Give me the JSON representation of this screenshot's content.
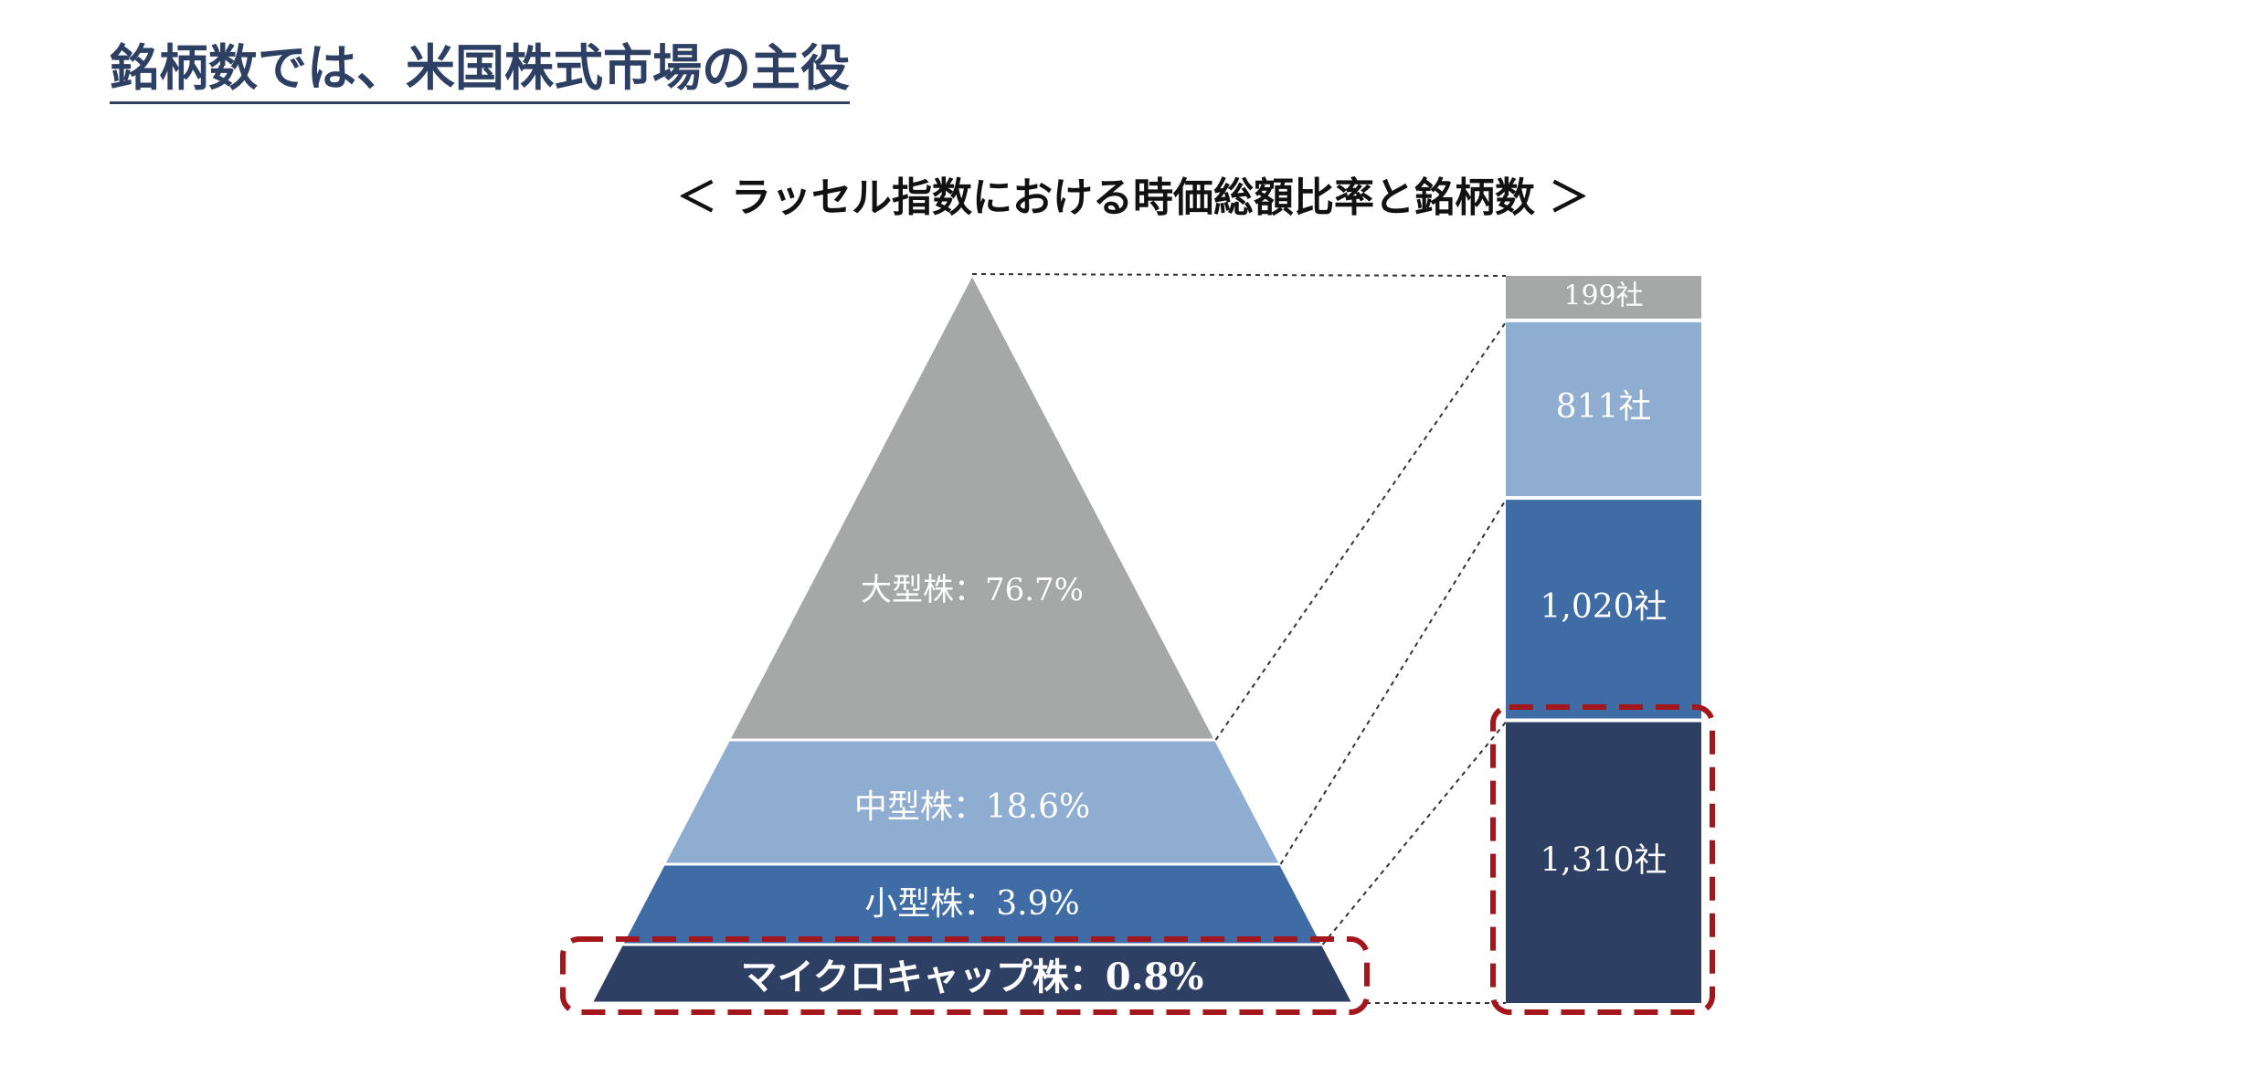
{
  "page": {
    "title": "銘柄数では、米国株式市場の主役"
  },
  "chart_data": {
    "type": "pyramid",
    "title": "＜ ラッセル指数における時価総額比率と銘柄数 ＞",
    "series": [
      {
        "name": "時価総額比率",
        "unit": "%"
      },
      {
        "name": "銘柄数",
        "unit": "社"
      }
    ],
    "segments": [
      {
        "label": "大型株：76.7%",
        "share": 76.7,
        "count": 199,
        "count_label": "199社",
        "color": "#a6a8a8",
        "highlight": false
      },
      {
        "label": "中型株：18.6%",
        "share": 18.6,
        "count": 811,
        "count_label": "811社",
        "color": "#8fadd1",
        "highlight": false
      },
      {
        "label": "小型株：3.9%",
        "share": 3.9,
        "count": 1020,
        "count_label": "1,020社",
        "color": "#3f6ca4",
        "highlight": false
      },
      {
        "label": "マイクロキャップ株：0.8%",
        "share": 0.8,
        "count": 1310,
        "count_label": "1,310社",
        "color": "#2d3f63",
        "highlight": true
      }
    ],
    "highlight_color": "#a3161c"
  }
}
